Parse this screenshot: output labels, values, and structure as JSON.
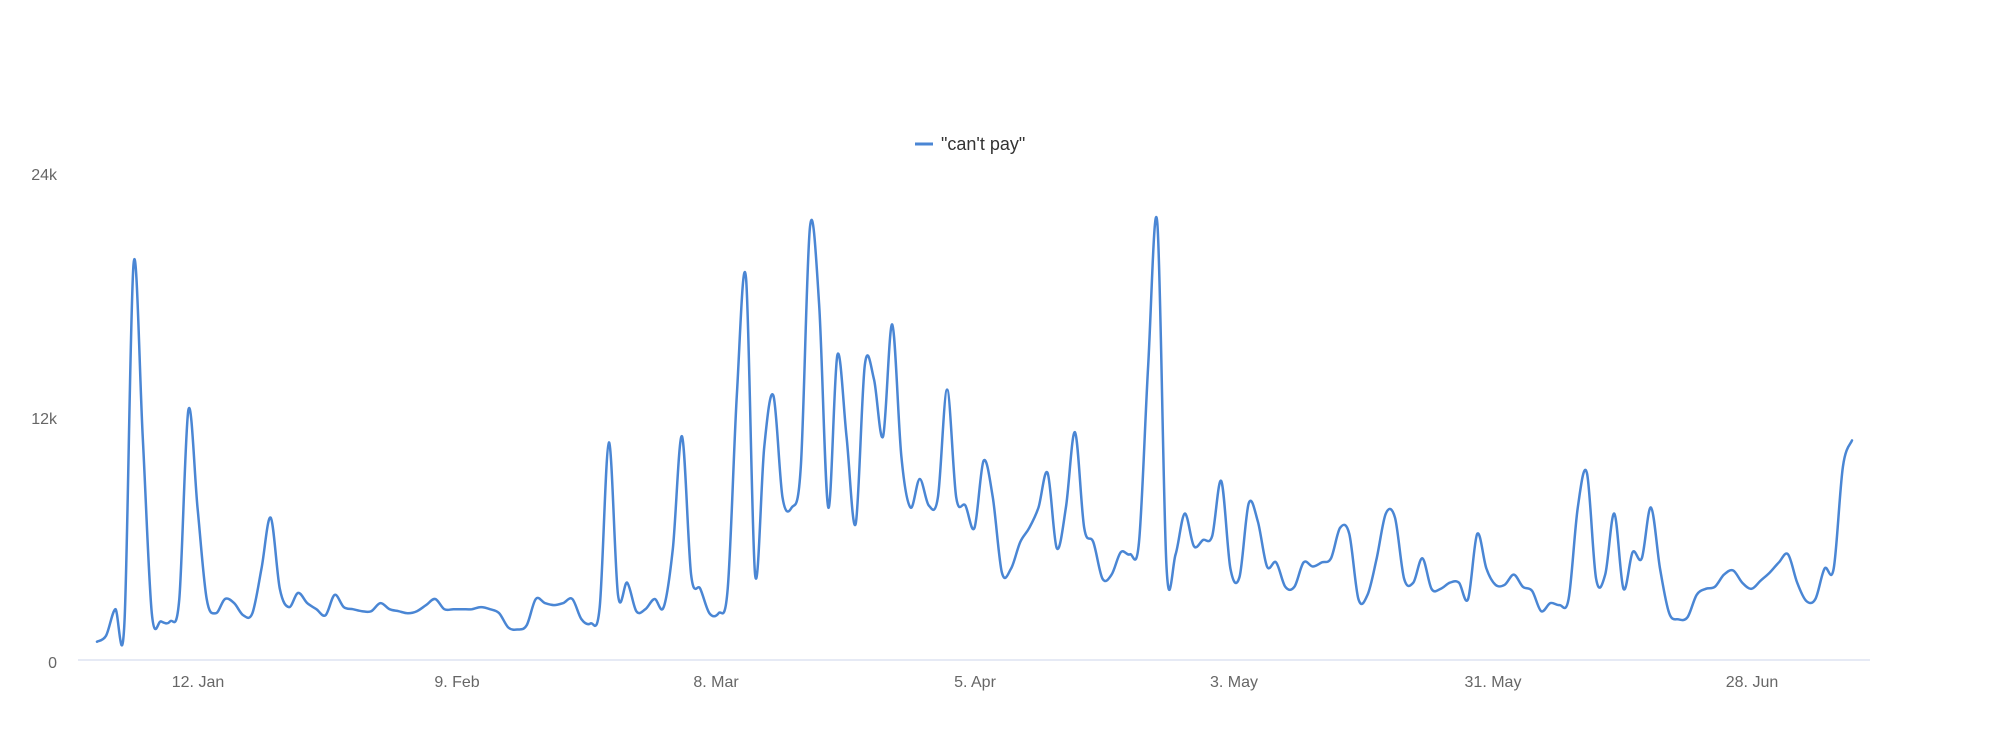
{
  "chart_data": {
    "type": "line",
    "title": "",
    "xlabel": "",
    "ylabel": "",
    "x_ticks": [
      "12. Jan",
      "9. Feb",
      "8. Mar",
      "5. Apr",
      "3. May",
      "31. May",
      "28. Jun"
    ],
    "y_ticks": [
      "0",
      "12k",
      "24k"
    ],
    "ylim": [
      0,
      24000
    ],
    "grid": false,
    "legend_position": "top-center",
    "series": [
      {
        "name": "\"can't pay\"",
        "color": "#4a86d4",
        "values": [
          900,
          1200,
          2500,
          1800,
          19500,
          11000,
          2300,
          1900,
          1900,
          3000,
          12300,
          7500,
          3000,
          2300,
          3000,
          2800,
          2200,
          2300,
          4500,
          7000,
          3500,
          2600,
          3300,
          2800,
          2500,
          2200,
          3200,
          2600,
          2500,
          2400,
          2400,
          2800,
          2500,
          2400,
          2300,
          2400,
          2700,
          3000,
          2500,
          2500,
          2500,
          2500,
          2600,
          2500,
          2300,
          1600,
          1500,
          1700,
          3000,
          2800,
          2700,
          2800,
          3000,
          2000,
          1800,
          2600,
          10700,
          3200,
          3800,
          2400,
          2500,
          3000,
          2600,
          5500,
          11000,
          4200,
          3500,
          2300,
          2300,
          3500,
          13000,
          18800,
          4200,
          10500,
          13000,
          8000,
          7500,
          9500,
          21300,
          17500,
          7500,
          15000,
          11000,
          6700,
          14500,
          13800,
          11000,
          16500,
          10000,
          7500,
          8900,
          7600,
          8000,
          13300,
          8000,
          7600,
          6500,
          9800,
          8000,
          4300,
          4500,
          5800,
          6500,
          7500,
          9200,
          5500,
          7500,
          11200,
          6500,
          5800,
          4000,
          4200,
          5300,
          5200,
          5800,
          14500,
          21500,
          4600,
          5200,
          7200,
          5600,
          5900,
          6100,
          8800,
          4500,
          4100,
          7700,
          6800,
          4600,
          4800,
          3600,
          3600,
          4800,
          4600,
          4800,
          5000,
          6500,
          6200,
          3000,
          3200,
          5000,
          7200,
          7000,
          4000,
          3800,
          5000,
          3500,
          3500,
          3800,
          3800,
          3000,
          6200,
          4500,
          3700,
          3700,
          4200,
          3600,
          3400,
          2400,
          2800,
          2700,
          3000,
          7500,
          9200,
          4000,
          4200,
          7200,
          3500,
          5300,
          5000,
          7500,
          4500,
          2300,
          2000,
          2100,
          3200,
          3500,
          3600,
          4200,
          4400,
          3800,
          3500,
          3900,
          4300,
          4800,
          5200,
          3800,
          2900,
          3000,
          4500,
          4500,
          9500,
          10800
        ]
      }
    ]
  }
}
